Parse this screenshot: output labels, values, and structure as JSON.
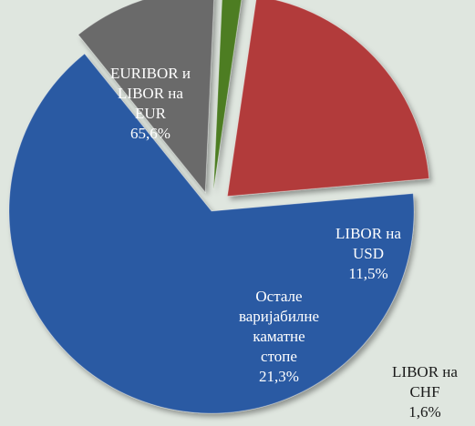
{
  "chart_data": {
    "type": "pie",
    "categories": [
      [
        "EURIBOR и",
        "LIBOR на",
        "EUR"
      ],
      [
        "LIBOR на",
        "USD"
      ],
      [
        "LIBOR на",
        "CHF"
      ],
      [
        "Остале",
        "варијабилне",
        "каматне",
        "стопе"
      ]
    ],
    "values": [
      65.6,
      11.5,
      1.6,
      21.3
    ],
    "value_labels": [
      "65,6%",
      "11,5%",
      "1,6%",
      "21,3%"
    ],
    "colors": [
      "#2c5aa3",
      "#6a6a6a",
      "#4d7d24",
      "#b23b3b"
    ]
  }
}
